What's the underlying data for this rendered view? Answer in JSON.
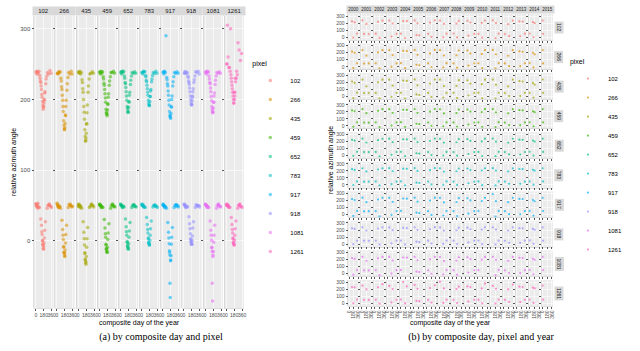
{
  "chart_data": {
    "type": "scatter",
    "x_label": "composite day of the year",
    "y_label": "relative azimuth angle",
    "legend_title": "pixel",
    "legend": "right",
    "grid": true,
    "marker": "circle",
    "x": [
      113,
      161,
      209,
      305,
      17,
      81,
      169,
      257,
      33,
      121,
      177,
      289,
      57,
      145,
      185,
      337,
      9,
      97,
      169,
      233,
      41,
      113,
      153,
      217,
      65,
      137,
      193,
      321,
      25,
      153,
      177,
      273,
      49,
      161,
      185,
      249,
      89,
      129,
      201,
      353,
      17,
      145,
      161,
      265,
      73,
      177,
      193,
      297,
      41,
      169,
      201,
      345,
      105,
      137,
      225,
      313,
      1,
      129,
      153,
      193,
      9,
      25
    ],
    "year": [
      2000,
      2000,
      2000,
      2000,
      2001,
      2001,
      2001,
      2001,
      2002,
      2002,
      2002,
      2002,
      2003,
      2003,
      2003,
      2003,
      2004,
      2004,
      2004,
      2004,
      2005,
      2005,
      2005,
      2005,
      2006,
      2006,
      2006,
      2006,
      2007,
      2007,
      2007,
      2007,
      2008,
      2008,
      2008,
      2008,
      2009,
      2009,
      2009,
      2009,
      2010,
      2010,
      2010,
      2010,
      2011,
      2011,
      2011,
      2011,
      2012,
      2012,
      2012,
      2012,
      2013,
      2013,
      2013,
      2013,
      2014,
      2014,
      2014,
      2014,
      2015,
      2015
    ],
    "series": [
      {
        "name": "102",
        "color": "#F8766D",
        "values": [
          224,
          -5,
          211,
          52,
          240,
          47,
          189,
          46,
          51,
          219,
          -8,
          236,
          237,
          9,
          195,
          49,
          52,
          230,
          -11,
          229,
          239,
          31,
          197,
          27,
          48,
          207,
          4,
          241,
          236,
          0,
          190,
          50,
          53,
          192,
          -3,
          233,
          234,
          22,
          209,
          47,
          49,
          203,
          -6,
          238,
          240,
          -12,
          200,
          51,
          46,
          186,
          15,
          237,
          226,
          13,
          222,
          50,
          52,
          214,
          0,
          199,
          238,
          49
        ]
      },
      {
        "name": "266",
        "color": "#D89000",
        "values": [
          214,
          -16,
          199,
          50,
          237,
          46,
          158,
          47,
          50,
          206,
          -21,
          236,
          238,
          2,
          166,
          48,
          52,
          226,
          -18,
          222,
          239,
          29,
          170,
          22,
          49,
          190,
          -3,
          240,
          236,
          -8,
          160,
          51,
          48,
          163,
          -13,
          231,
          230,
          16,
          190,
          49,
          50,
          183,
          -17,
          238,
          239,
          -22,
          178,
          52,
          47,
          157,
          9,
          236,
          218,
          8,
          213,
          50,
          53,
          199,
          -9,
          177,
          237,
          48
        ]
      },
      {
        "name": "435",
        "color": "#A3A500",
        "values": [
          210,
          -26,
          192,
          52,
          238,
          46,
          142,
          47,
          49,
          200,
          -30,
          237,
          236,
          -6,
          152,
          50,
          51,
          224,
          -31,
          219,
          240,
          27,
          157,
          19,
          48,
          182,
          -9,
          239,
          237,
          -17,
          145,
          49,
          50,
          148,
          -22,
          229,
          228,
          12,
          181,
          48,
          52,
          172,
          -27,
          236,
          238,
          -33,
          166,
          51,
          47,
          141,
          3,
          237,
          215,
          3,
          210,
          50,
          49,
          190,
          -18,
          165,
          239,
          50
        ]
      },
      {
        "name": "459",
        "color": "#39B600",
        "values": [
          220,
          -11,
          208,
          51,
          239,
          47,
          180,
          46,
          50,
          214,
          -16,
          238,
          237,
          5,
          185,
          49,
          52,
          229,
          -14,
          226,
          240,
          30,
          186,
          24,
          48,
          202,
          2,
          240,
          236,
          -5,
          177,
          50,
          49,
          182,
          -9,
          232,
          232,
          18,
          203,
          48,
          51,
          196,
          -12,
          238,
          239,
          -16,
          193,
          52,
          47,
          179,
          11,
          237,
          223,
          10,
          220,
          49,
          51,
          208,
          -6,
          194,
          238,
          50
        ]
      },
      {
        "name": "652",
        "color": "#00BF7D",
        "values": [
          222,
          -6,
          210,
          51,
          239,
          48,
          184,
          47,
          50,
          217,
          -12,
          237,
          238,
          8,
          189,
          49,
          51,
          230,
          -9,
          227,
          240,
          31,
          190,
          26,
          49,
          205,
          5,
          239,
          236,
          -1,
          182,
          50,
          48,
          187,
          -4,
          233,
          233,
          20,
          206,
          48,
          50,
          199,
          -8,
          238,
          240,
          -11,
          196,
          51,
          47,
          182,
          14,
          237,
          224,
          13,
          221,
          49,
          52,
          211,
          -2,
          197,
          238,
          50
        ]
      },
      {
        "name": "783",
        "color": "#00BFC4",
        "values": [
          225,
          -2,
          214,
          50,
          238,
          47,
          192,
          48,
          51,
          220,
          -6,
          237,
          239,
          11,
          197,
          49,
          52,
          232,
          -4,
          229,
          240,
          33,
          199,
          28,
          48,
          210,
          8,
          240,
          236,
          3,
          191,
          50,
          49,
          195,
          1,
          234,
          234,
          23,
          212,
          47,
          50,
          206,
          -3,
          238,
          239,
          -6,
          204,
          51,
          48,
          192,
          17,
          237,
          227,
          16,
          225,
          49,
          51,
          215,
          4,
          204,
          238,
          50
        ]
      },
      {
        "name": "917",
        "color": "#00B0F6",
        "values": [
          219,
          -20,
          205,
          51,
          239,
          46,
          176,
          47,
          49,
          212,
          -27,
          237,
          238,
          -4,
          180,
          50,
          52,
          228,
          -80,
          225,
          240,
          26,
          183,
          19,
          48,
          199,
          -5,
          239,
          236,
          -14,
          173,
          50,
          49,
          178,
          -21,
          232,
          231,
          12,
          200,
          48,
          50,
          192,
          -60,
          238,
          290,
          -28,
          190,
          51,
          47,
          175,
          5,
          237,
          222,
          4,
          219,
          49,
          51,
          206,
          -16,
          189,
          238,
          50
        ]
      },
      {
        "name": "918",
        "color": "#9590FF",
        "values": [
          224,
          -1,
          215,
          49,
          239,
          48,
          193,
          47,
          50,
          221,
          -5,
          238,
          237,
          10,
          198,
          50,
          51,
          231,
          -5,
          228,
          239,
          34,
          200,
          27,
          49,
          211,
          7,
          240,
          237,
          2,
          192,
          51,
          48,
          196,
          0,
          233,
          233,
          24,
          211,
          48,
          51,
          205,
          -2,
          239,
          238,
          -5,
          205,
          50,
          47,
          193,
          18,
          236,
          226,
          17,
          224,
          50,
          52,
          216,
          3,
          203,
          237,
          49
        ]
      },
      {
        "name": "1081",
        "color": "#E76BF3",
        "values": [
          222,
          -15,
          209,
          51,
          239,
          47,
          183,
          46,
          50,
          216,
          -22,
          237,
          238,
          1,
          188,
          49,
          51,
          229,
          -85,
          227,
          240,
          28,
          190,
          22,
          48,
          204,
          -2,
          239,
          236,
          -10,
          181,
          50,
          49,
          186,
          -15,
          233,
          233,
          15,
          205,
          48,
          51,
          198,
          -60,
          238,
          239,
          -20,
          196,
          52,
          47,
          182,
          8,
          237,
          224,
          8,
          221,
          49,
          52,
          211,
          -9,
          196,
          238,
          50
        ]
      },
      {
        "name": "1261",
        "color": "#FF62BC",
        "values": [
          230,
          -2,
          225,
          52,
          250,
          47,
          195,
          46,
          51,
          225,
          -6,
          270,
          245,
          11,
          200,
          49,
          52,
          300,
          -4,
          240,
          260,
          33,
          205,
          28,
          48,
          215,
          8,
          255,
          305,
          3,
          210,
          50,
          49,
          200,
          1,
          235,
          240,
          23,
          230,
          47,
          50,
          210,
          -3,
          280,
          245,
          -6,
          205,
          51,
          48,
          195,
          17,
          265,
          235,
          16,
          230,
          49,
          51,
          220,
          4,
          210,
          250,
          50
        ]
      }
    ],
    "panels": [
      {
        "caption": "(a) by composite day and pixel",
        "facets": [
          "pixel"
        ],
        "xlim": [
          -40,
          400
        ],
        "xticks": [
          0,
          180,
          360
        ],
        "ylim": [
          -95,
          318
        ],
        "yticks": [
          0,
          100,
          200,
          300
        ]
      },
      {
        "caption": "(b) by composite day, pixel and year",
        "facets": [
          "pixel",
          "year"
        ],
        "years": [
          2000,
          2001,
          2002,
          2003,
          2004,
          2005,
          2006,
          2007,
          2008,
          2009,
          2010,
          2011,
          2012,
          2013,
          2014,
          2015
        ],
        "xlim": [
          -40,
          400
        ],
        "xticks": [
          0,
          180,
          360
        ],
        "ylim": [
          -40,
          330
        ],
        "yticks": [
          0,
          100,
          200,
          300
        ]
      }
    ]
  }
}
